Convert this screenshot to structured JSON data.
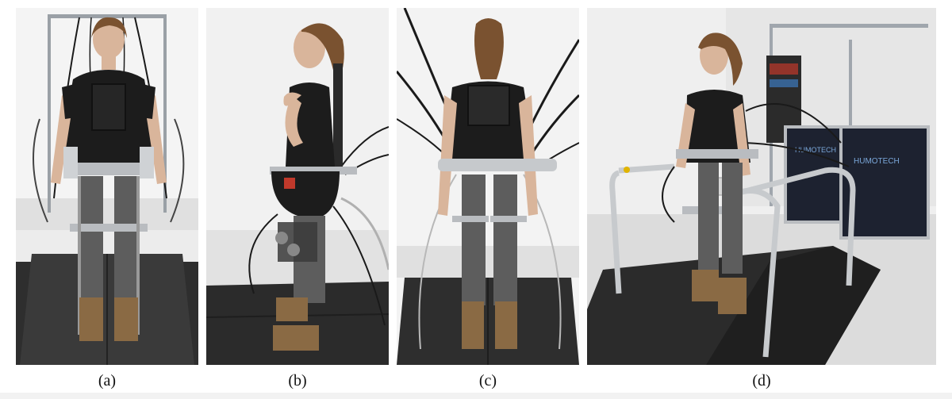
{
  "figure": {
    "panels": [
      {
        "id": "a",
        "caption": "(a)",
        "view": "front"
      },
      {
        "id": "b",
        "caption": "(b)",
        "view": "side"
      },
      {
        "id": "c",
        "caption": "(c)",
        "view": "back"
      },
      {
        "id": "d",
        "caption": "(d)",
        "view": "three-quarter"
      }
    ],
    "equipment_labels": {
      "case_left": "HUMOTECH",
      "case_right": "HUMOTECH"
    }
  },
  "colors": {
    "backdrop": "#ebebeb",
    "treadmill": "#2e2e2e",
    "shirt": "#1c1c1c",
    "leggings": "#5d5d5d",
    "boots": "#8a6a44",
    "skin": "#d9b59b",
    "hair": "#7a5230",
    "metal": "#b9bcc0",
    "cable": "#1a1a1a",
    "case": "#1d2230"
  }
}
